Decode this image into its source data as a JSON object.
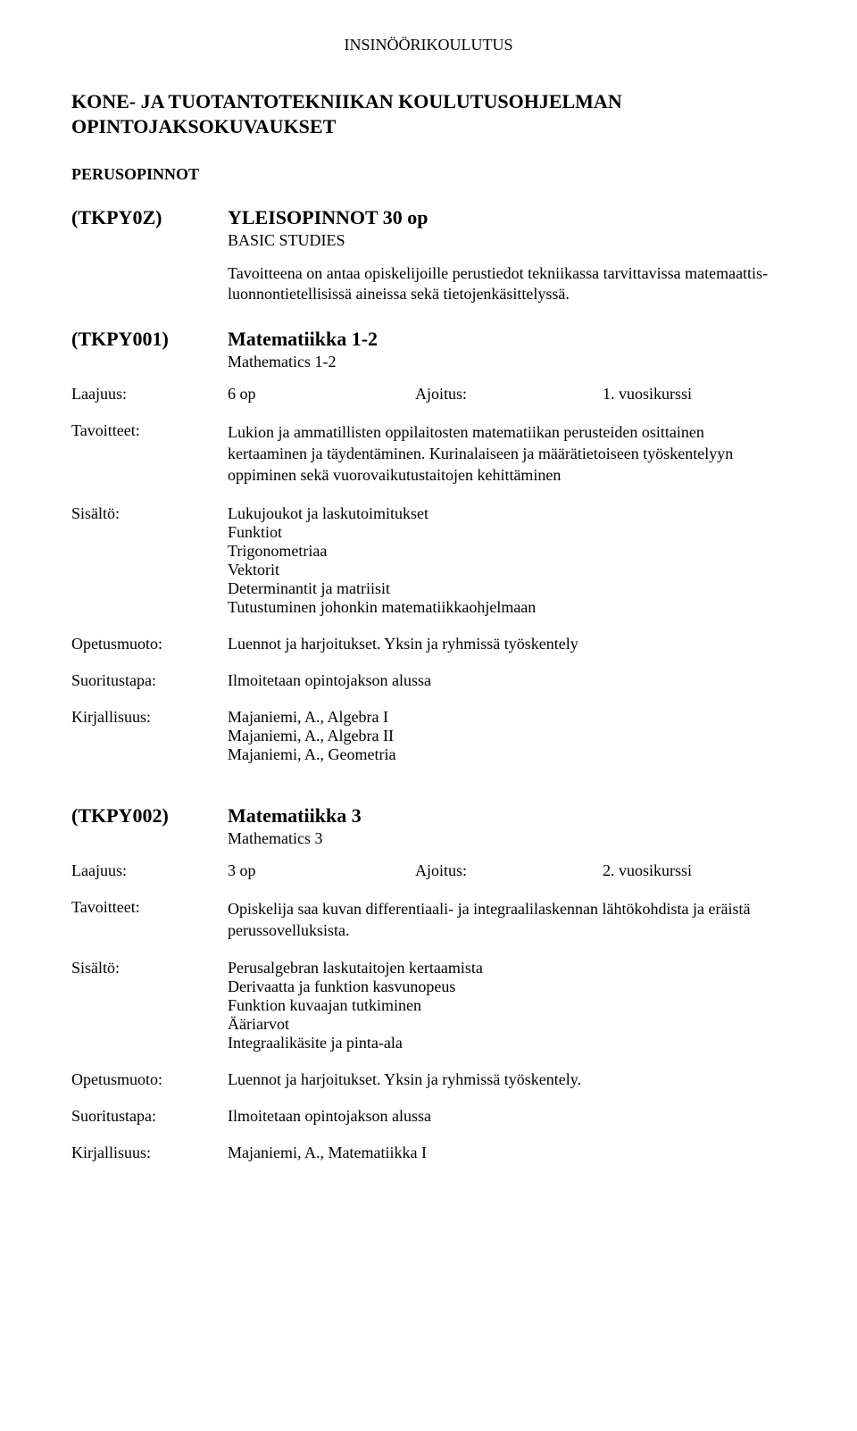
{
  "dept_title": "INSINÖÖRIKOULUTUS",
  "program_title_1": "KONE- JA TUOTANTOTEKNIIKAN KOULUTUSOHJELMAN",
  "program_title_2": "OPINTOJAKSOKUVAUKSET",
  "section_title": "PERUSOPINNOT",
  "labels": {
    "laajuus": "Laajuus:",
    "ajoitus": "Ajoitus:",
    "tavoitteet": "Tavoitteet:",
    "sisalto": "Sisältö:",
    "opetusmuoto": "Opetusmuoto:",
    "suoritustapa": "Suoritustapa:",
    "kirjallisuus": "Kirjallisuus:"
  },
  "group": {
    "code": "(TKPY0Z)",
    "title": "YLEISOPINNOT 30 op",
    "sub": "BASIC STUDIES",
    "intro": "Tavoitteena on antaa opiskelijoille perustiedot tekniikassa tarvittavissa matemaattis-luonnontietellisissä aineissa sekä tietojenkäsittelyssä."
  },
  "course1": {
    "code": "(TKPY001)",
    "title": "Matematiikka 1-2",
    "sub": "Mathematics 1-2",
    "laajuus": "6 op",
    "ajoitus": "1. vuosikurssi",
    "tavoitteet": "Lukion ja ammatillisten oppilaitosten matematiikan perusteiden osittainen kertaaminen ja täydentäminen. Kurinalaiseen ja määrätietoiseen työskentelyyn oppiminen sekä vuorovaikutustaitojen kehittäminen",
    "sisalto": [
      "Lukujoukot ja laskutoimitukset",
      "Funktiot",
      "Trigonometriaa",
      "Vektorit",
      "Determinantit ja matriisit",
      "Tutustuminen johonkin matematiikkaohjelmaan"
    ],
    "opetusmuoto": "Luennot ja harjoitukset. Yksin ja ryhmissä työskentely",
    "suoritustapa": "Ilmoitetaan opintojakson alussa",
    "kirjallisuus": [
      "Majaniemi, A., Algebra I",
      "Majaniemi, A., Algebra II",
      "Majaniemi, A., Geometria"
    ]
  },
  "course2": {
    "code": "(TKPY002)",
    "title": "Matematiikka 3",
    "sub": "Mathematics 3",
    "laajuus": "3 op",
    "ajoitus": "2. vuosikurssi",
    "tavoitteet": "Opiskelija saa kuvan differentiaali- ja integraalilaskennan lähtökohdista ja eräistä perussovelluksista.",
    "sisalto": [
      "Perusalgebran laskutaitojen kertaamista",
      "Derivaatta ja funktion kasvunopeus",
      "Funktion kuvaajan tutkiminen",
      "Ääriarvot",
      "Integraalikäsite ja pinta-ala"
    ],
    "opetusmuoto": "Luennot ja harjoitukset. Yksin ja ryhmissä työskentely.",
    "suoritustapa": "Ilmoitetaan opintojakson alussa",
    "kirjallisuus": [
      "Majaniemi, A., Matematiikka I"
    ]
  }
}
